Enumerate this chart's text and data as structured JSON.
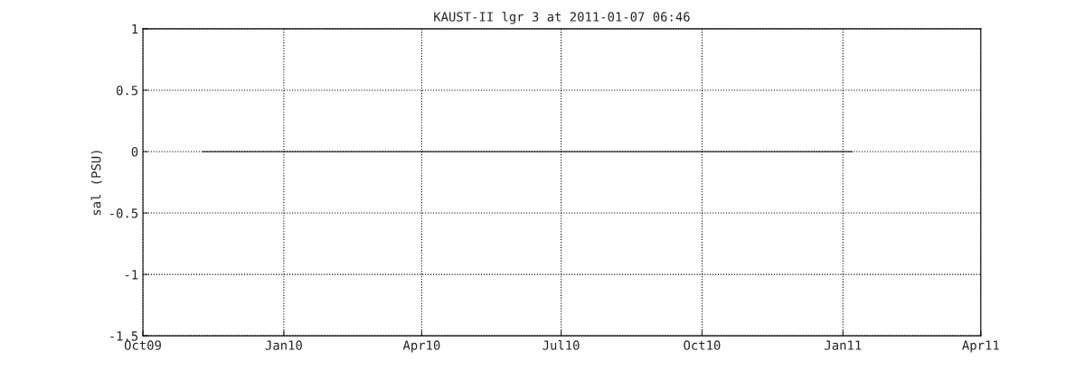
{
  "chart_data": {
    "type": "line",
    "title": "KAUST-II lgr 3 at 2011-01-07 06:46",
    "ylabel": "sal (PSU)",
    "x": [
      "2009-11-09",
      "2010-04-01",
      "2010-09-01",
      "2011-01-07"
    ],
    "series": [
      {
        "color": "#000000",
        "values": [
          0,
          0,
          0,
          0
        ]
      }
    ],
    "xlim": [
      "2009-10-01",
      "2011-04-01"
    ],
    "xticks": [
      {
        "value": "2009-10-01",
        "label": "Oct09"
      },
      {
        "value": "2010-01-01",
        "label": "Jan10"
      },
      {
        "value": "2010-04-01",
        "label": "Apr10"
      },
      {
        "value": "2010-07-01",
        "label": "Jul10"
      },
      {
        "value": "2010-10-01",
        "label": "Oct10"
      },
      {
        "value": "2011-01-01",
        "label": "Jan11"
      },
      {
        "value": "2011-04-01",
        "label": "Apr11"
      }
    ],
    "ylim": [
      -1.5,
      1
    ],
    "yticks": [
      -1.5,
      -1,
      -0.5,
      0,
      0.5,
      1
    ],
    "grid": true,
    "line_style": "solid",
    "marker": "none",
    "legend": false
  }
}
